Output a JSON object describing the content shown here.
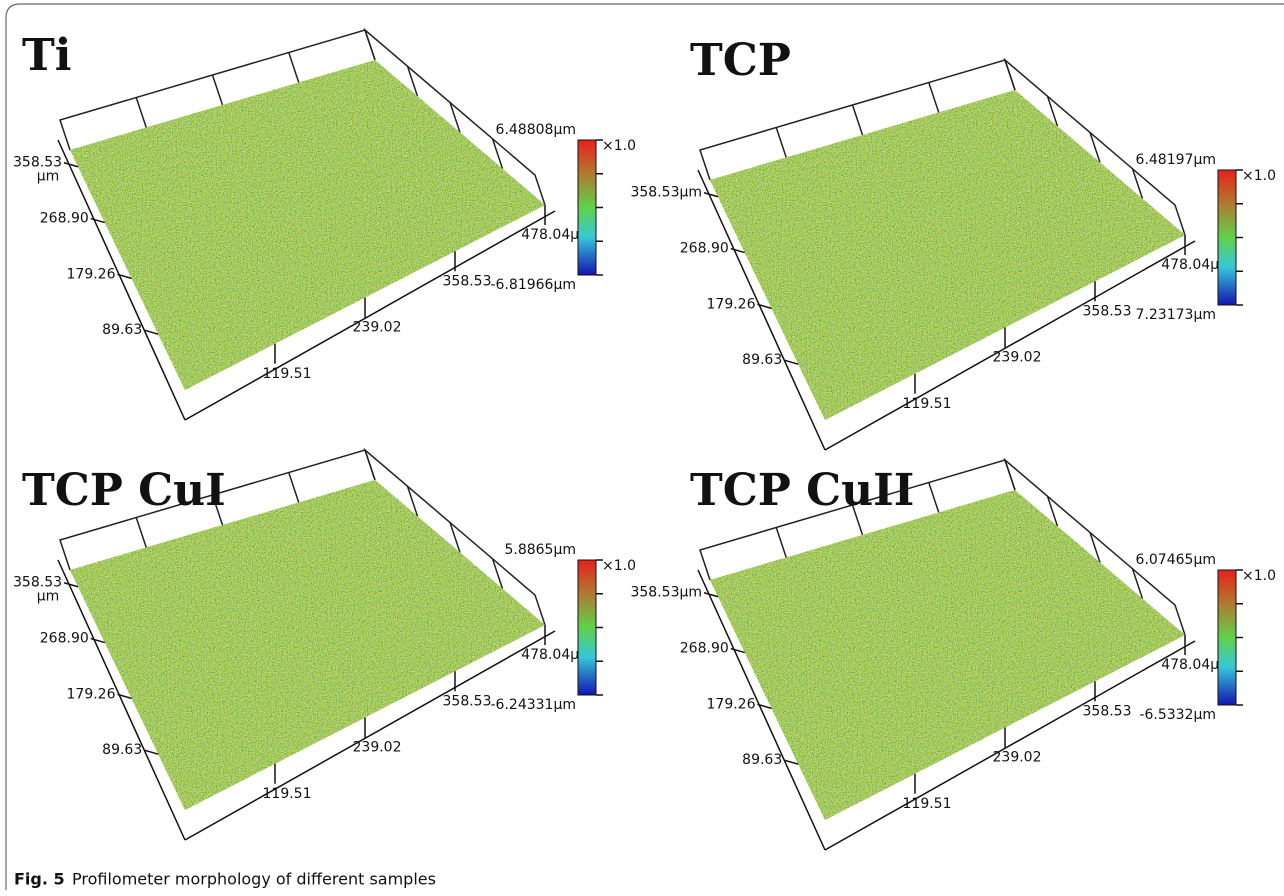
{
  "figure": {
    "panels": [
      {
        "title": "Ti",
        "y_labels": [
          "89.63",
          "179.26",
          "268.90",
          "358.53"
        ],
        "y_unit": "µm",
        "x_labels": [
          "119.51",
          "239.02",
          "358.53",
          "478.04µm"
        ],
        "colorbar": {
          "max": "6.48808µm",
          "min": "-6.81966µm",
          "scale": "×1.0"
        }
      },
      {
        "title": "TCP",
        "y_labels": [
          "89.63",
          "179.26",
          "268.90",
          "358.53µm"
        ],
        "x_labels": [
          "119.51",
          "239.02",
          "358.53",
          "478.04µm"
        ],
        "colorbar": {
          "max": "6.48197µm",
          "min": "7.23173µm",
          "scale": "×1.0"
        }
      },
      {
        "title": "TCP CuI",
        "y_labels": [
          "89.63",
          "179.26",
          "268.90",
          "358.53"
        ],
        "y_unit": "µm",
        "x_labels": [
          "119.51",
          "239.02",
          "358.53",
          "478.04µm"
        ],
        "colorbar": {
          "max": "5.8865µm",
          "min": "-6.24331µm",
          "scale": "×1.0"
        }
      },
      {
        "title": "TCP CuII",
        "y_labels": [
          "89.63",
          "179.26",
          "268.90",
          "358.53µm"
        ],
        "x_labels": [
          "119.51",
          "239.02",
          "358.53",
          "478.04µm"
        ],
        "colorbar": {
          "max": "6.07465µm",
          "min": "-6.5332µm",
          "scale": "×1.0"
        }
      }
    ],
    "caption": {
      "label": "Fig. 5",
      "text": "Profilometer morphology of different samples"
    }
  }
}
